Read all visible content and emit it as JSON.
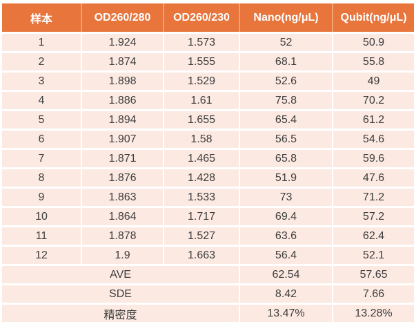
{
  "chart_data": {
    "type": "table",
    "columns": [
      "样本",
      "OD260/280",
      "OD260/230",
      "Nano(ng/μL)",
      "Qubit(ng/μL)"
    ],
    "rows": [
      [
        "1",
        "1.924",
        "1.573",
        "52",
        "50.9"
      ],
      [
        "2",
        "1.874",
        "1.555",
        "68.1",
        "55.8"
      ],
      [
        "3",
        "1.898",
        "1.529",
        "52.6",
        "49"
      ],
      [
        "4",
        "1.886",
        "1.61",
        "75.8",
        "70.2"
      ],
      [
        "5",
        "1.894",
        "1.655",
        "65.4",
        "61.2"
      ],
      [
        "6",
        "1.907",
        "1.58",
        "56.5",
        "54.6"
      ],
      [
        "7",
        "1.871",
        "1.465",
        "65.8",
        "59.6"
      ],
      [
        "8",
        "1.876",
        "1.428",
        "51.9",
        "47.6"
      ],
      [
        "9",
        "1.863",
        "1.533",
        "73",
        "71.2"
      ],
      [
        "10",
        "1.864",
        "1.717",
        "69.4",
        "57.2"
      ],
      [
        "11",
        "1.878",
        "1.527",
        "63.6",
        "62.4"
      ],
      [
        "12",
        "1.9",
        "1.663",
        "56.4",
        "52.1"
      ]
    ],
    "summary_rows": [
      {
        "label": "AVE",
        "nano": "62.54",
        "qubit": "57.65"
      },
      {
        "label": "SDE",
        "nano": "8.42",
        "qubit": "7.66"
      },
      {
        "label": "精密度",
        "nano": "13.47%",
        "qubit": "13.28%"
      }
    ]
  },
  "colors": {
    "header_bg": "#e7753c",
    "header_text": "#ffffff",
    "header_divider": "#f2a171",
    "row_bg": "#fce9e2",
    "grid": "#ffffff",
    "body_text": "#3d3d3d"
  }
}
